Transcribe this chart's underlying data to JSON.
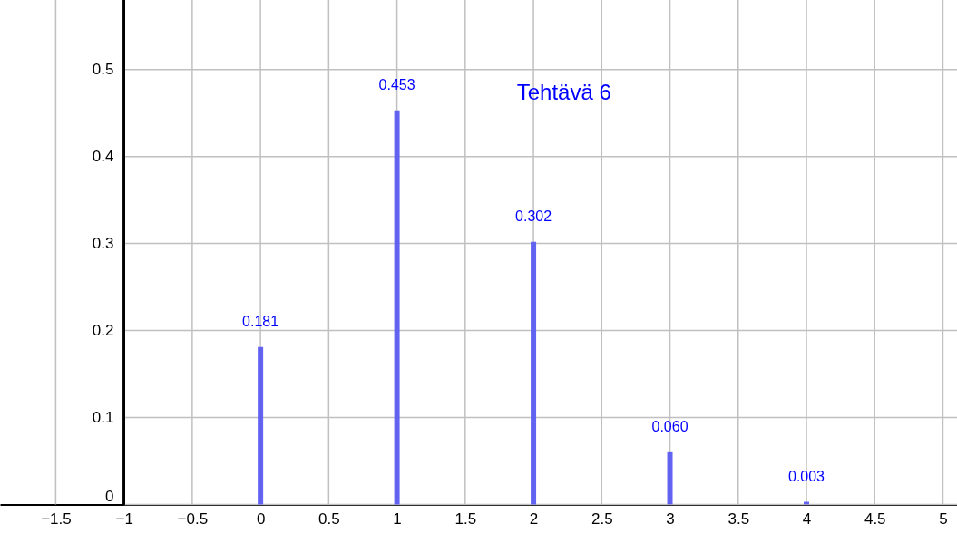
{
  "chart_data": {
    "type": "bar",
    "title": "Tehtävä 6",
    "x": [
      0,
      1,
      2,
      3,
      4
    ],
    "values": [
      0.181,
      0.453,
      0.302,
      0.06,
      0.003
    ],
    "color": "#5c5cf2",
    "value_labels": [
      "0.181",
      "0.453",
      "0.302",
      "0.060",
      "0.003"
    ],
    "xlim": [
      -1.875,
      5.07
    ],
    "xticks": [
      -1.5,
      -1,
      -0.5,
      0,
      0.5,
      1,
      1.5,
      2,
      2.5,
      3,
      3.5,
      4,
      4.5,
      5
    ],
    "ylim": [
      -0.034,
      0.58
    ],
    "yticks": [
      0,
      0.1,
      0.2,
      0.3,
      0.4,
      0.5
    ],
    "grid": true
  }
}
